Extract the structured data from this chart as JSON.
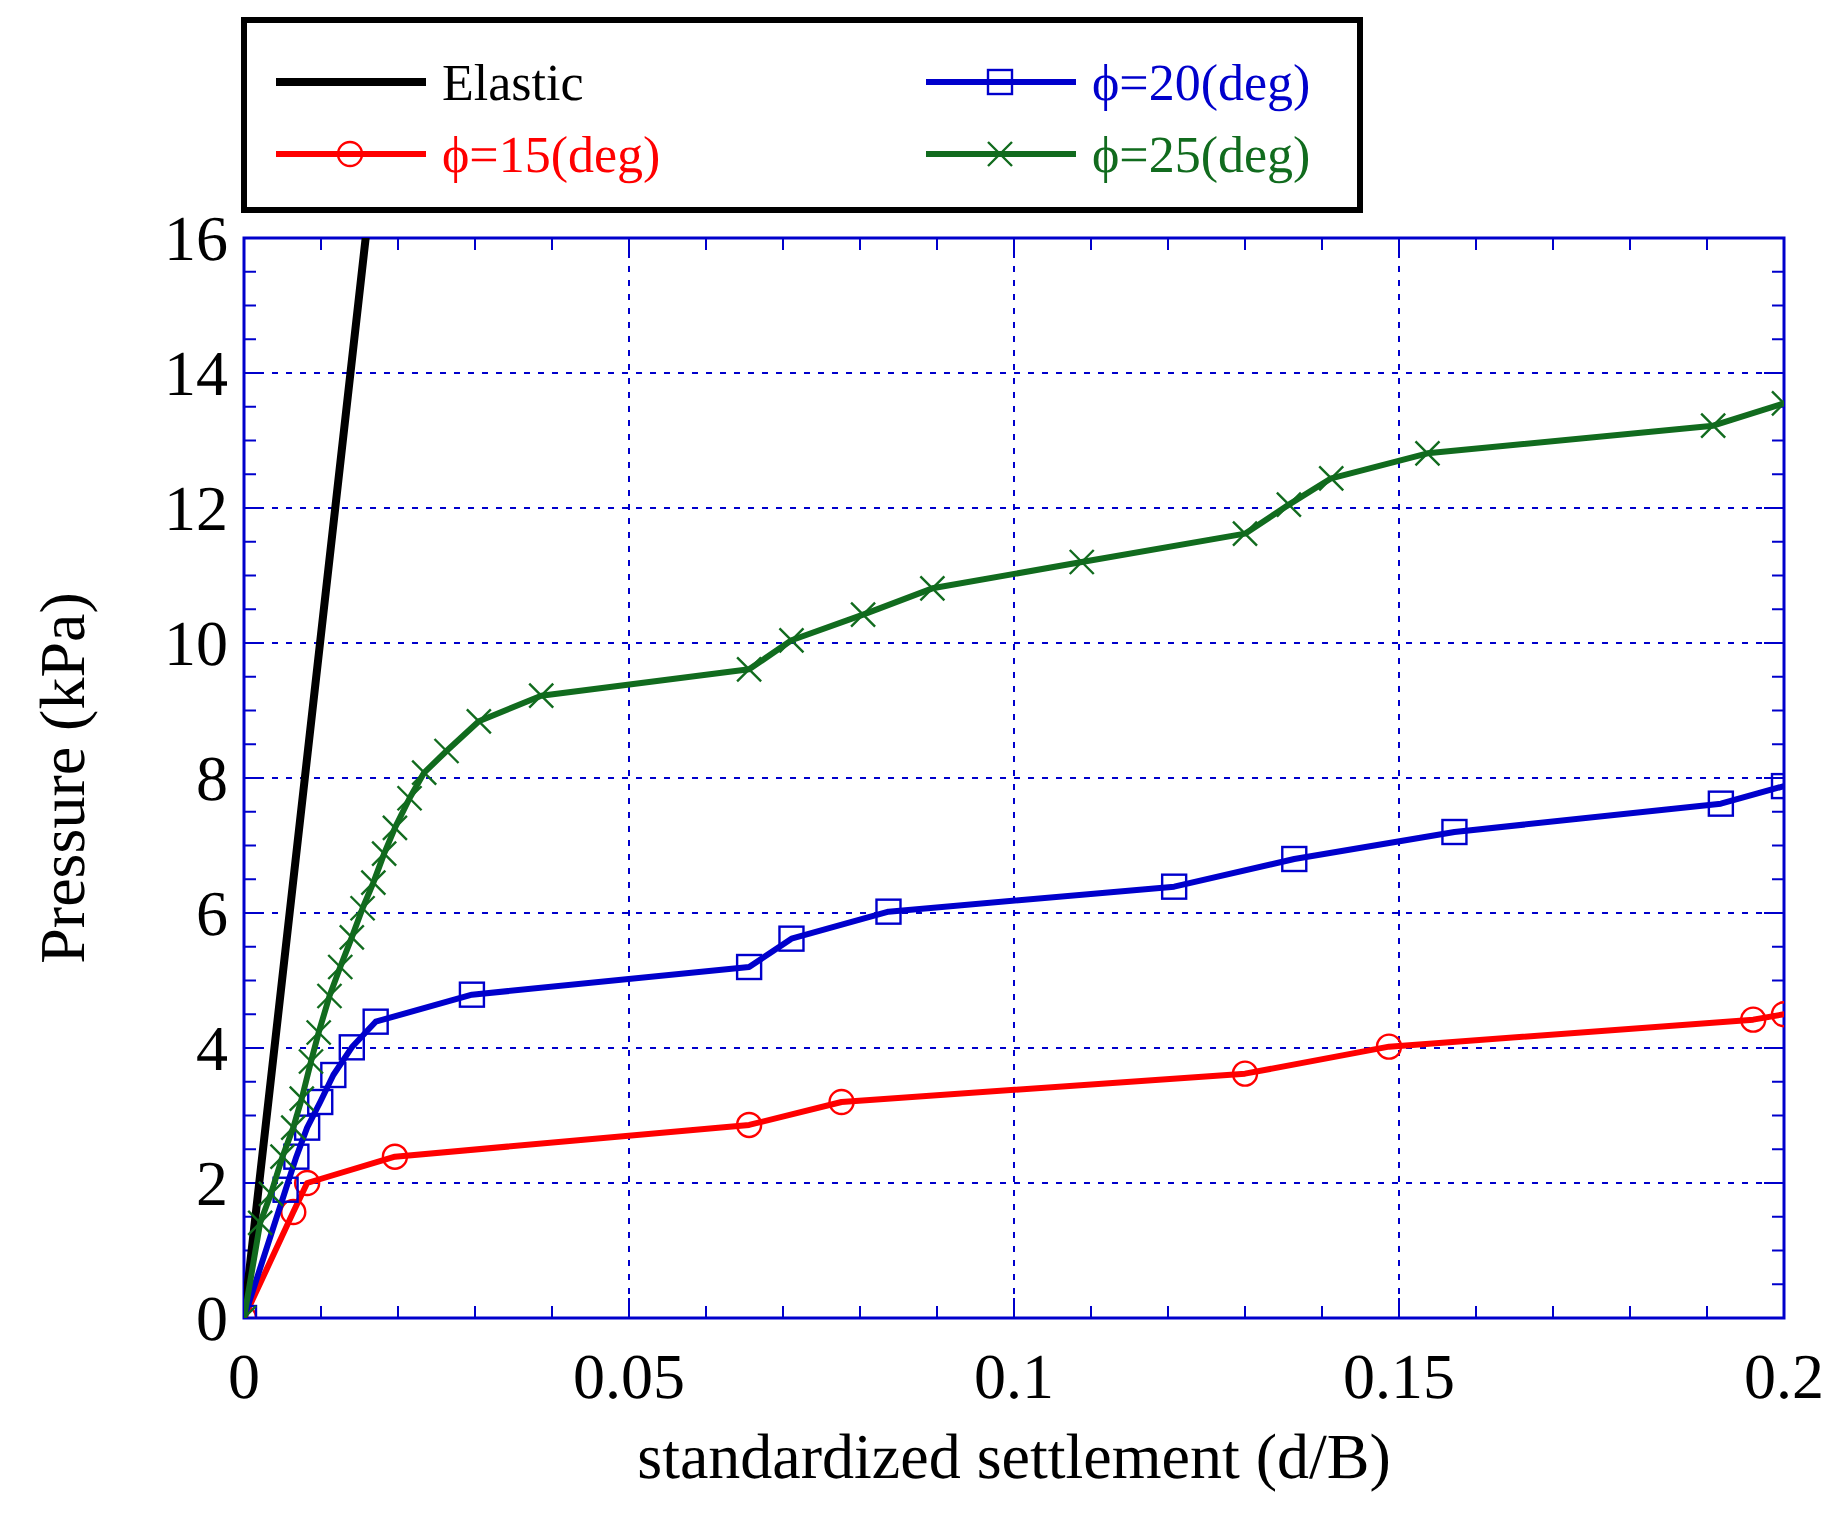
{
  "chart_data": {
    "type": "line",
    "xlabel": "standardized settlement (d/B)",
    "ylabel": "Pressure (kPa)",
    "xlim": [
      0,
      0.2
    ],
    "xticks": [
      0,
      0.05,
      0.1,
      0.15,
      0.2
    ],
    "ylim": [
      0,
      16
    ],
    "yticks": [
      0,
      2,
      4,
      6,
      8,
      10,
      12,
      14,
      16
    ],
    "grid": true,
    "legend": "top left",
    "series": [
      {
        "name": "Elastic",
        "color": "#000000",
        "marker": "none",
        "x": [
          0,
          0.0158
        ],
        "values": [
          0,
          16
        ]
      },
      {
        "name": "ϕ=15(deg)",
        "color": "#ff0000",
        "marker": "circle",
        "x": [
          0,
          0.0064,
          0.0082,
          0.0196,
          0.0656,
          0.0776,
          0.13,
          0.1487,
          0.196,
          0.2
        ],
        "values": [
          0,
          1.57,
          2.0,
          2.39,
          2.86,
          3.2,
          3.62,
          4.02,
          4.42,
          4.5
        ]
      },
      {
        "name": "ϕ=20(deg)",
        "color": "#0000cc",
        "marker": "square",
        "x": [
          0,
          0.0054,
          0.0068,
          0.0082,
          0.0099,
          0.0116,
          0.014,
          0.0171,
          0.0296,
          0.0656,
          0.0711,
          0.0837,
          0.1208,
          0.1364,
          0.1572,
          0.1918,
          0.2
        ],
        "values": [
          0,
          1.9,
          2.39,
          2.82,
          3.2,
          3.6,
          4.01,
          4.39,
          4.79,
          5.2,
          5.62,
          6.02,
          6.39,
          6.8,
          7.2,
          7.62,
          7.88
        ]
      },
      {
        "name": "ϕ=25(deg)",
        "color": "#116b1e",
        "marker": "cross",
        "x": [
          0,
          0.0021,
          0.0035,
          0.005,
          0.0064,
          0.0075,
          0.0087,
          0.0097,
          0.0111,
          0.0125,
          0.014,
          0.0154,
          0.0168,
          0.0182,
          0.0196,
          0.0215,
          0.0234,
          0.0263,
          0.0305,
          0.0386,
          0.0656,
          0.0711,
          0.0804,
          0.0894,
          0.1088,
          0.13,
          0.1357,
          0.1412,
          0.1537,
          0.1908,
          0.2
        ],
        "values": [
          0,
          1.41,
          1.84,
          2.39,
          2.82,
          3.25,
          3.8,
          4.23,
          4.77,
          5.2,
          5.64,
          6.07,
          6.45,
          6.88,
          7.26,
          7.7,
          8.08,
          8.4,
          8.84,
          9.22,
          9.61,
          10.04,
          10.42,
          10.81,
          11.2,
          11.62,
          12.05,
          12.44,
          12.81,
          13.22,
          13.55
        ]
      }
    ]
  }
}
